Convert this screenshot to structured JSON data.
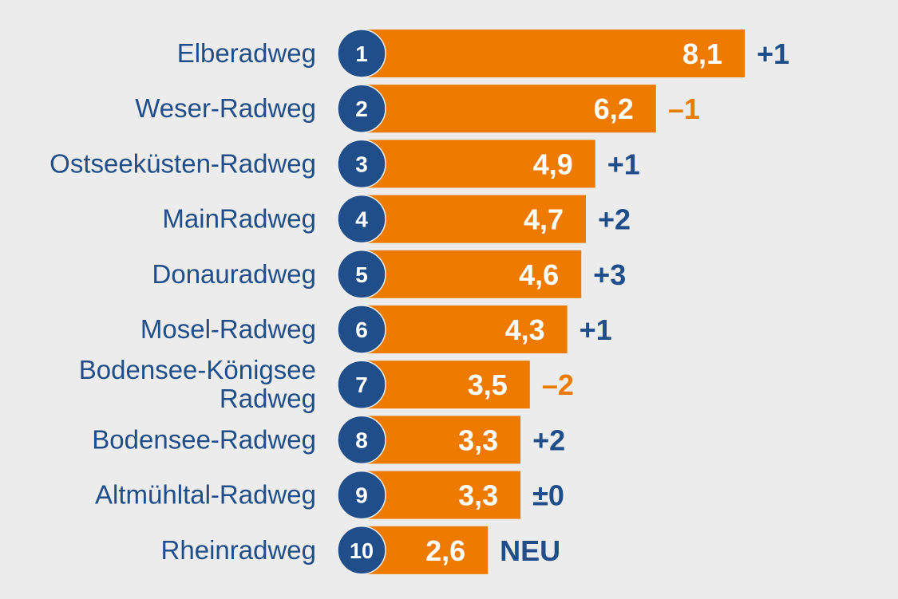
{
  "chart_data": {
    "type": "bar",
    "orientation": "horizontal",
    "title": "",
    "categories": [
      "Elberadweg",
      "Weser-Radweg",
      "Ostseeküsten-Radweg",
      "MainRadweg",
      "Donauradweg",
      "Mosel-Radweg",
      "Bodensee-Königsee Radweg",
      "Bodensee-Radweg",
      "Altmühltal-Radweg",
      "Rheinradweg"
    ],
    "category_lines": [
      [
        "Elberadweg"
      ],
      [
        "Weser-Radweg"
      ],
      [
        "Ostseeküsten-Radweg"
      ],
      [
        "MainRadweg"
      ],
      [
        "Donauradweg"
      ],
      [
        "Mosel-Radweg"
      ],
      [
        "Bodensee-Königsee",
        "Radweg"
      ],
      [
        "Bodensee-Radweg"
      ],
      [
        "Altmühltal-Radweg"
      ],
      [
        "Rheinradweg"
      ]
    ],
    "ranks": [
      "1",
      "2",
      "3",
      "4",
      "5",
      "6",
      "7",
      "8",
      "9",
      "10"
    ],
    "values": [
      8.1,
      6.2,
      4.9,
      4.7,
      4.6,
      4.3,
      3.5,
      3.3,
      3.3,
      2.6
    ],
    "value_labels": [
      "8,1",
      "6,2",
      "4,9",
      "4,7",
      "4,6",
      "4,3",
      "3,5",
      "3,3",
      "3,3",
      "2,6"
    ],
    "changes": [
      "+1",
      "–1",
      "+1",
      "+2",
      "+3",
      "+1",
      "–2",
      "+2",
      "±0",
      "NEU"
    ],
    "change_direction": [
      "up",
      "down",
      "up",
      "up",
      "up",
      "up",
      "down",
      "up",
      "same",
      "new"
    ],
    "xlim": [
      0,
      8.1
    ],
    "grid": false,
    "colors": {
      "bar": "#ee7a00",
      "circle": "#1f4e8a",
      "label": "#1f4e8a",
      "positive": "#1f4e8a",
      "negative": "#ee7a00",
      "background": "#ececec"
    }
  }
}
